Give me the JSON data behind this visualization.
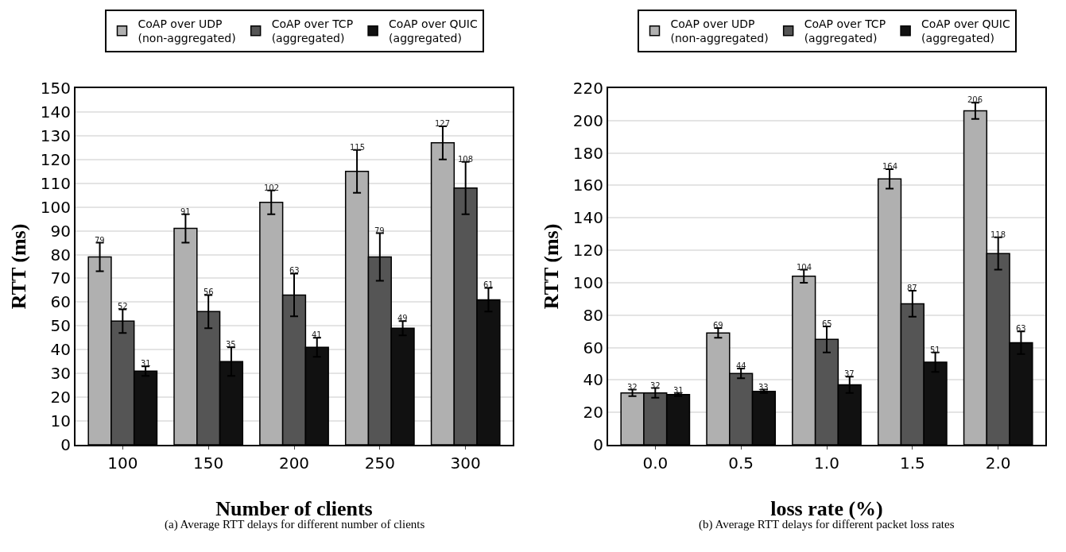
{
  "chart_data": [
    {
      "type": "bar",
      "xlabel": "Number of clients",
      "ylabel": "RTT (ms)",
      "categories": [
        "100",
        "150",
        "200",
        "250",
        "300"
      ],
      "ylim": [
        0,
        150
      ],
      "yticks": [
        0,
        10,
        20,
        30,
        40,
        50,
        60,
        70,
        80,
        90,
        100,
        110,
        120,
        130,
        140,
        150
      ],
      "grid": "y",
      "legend": "top",
      "data_labels": true,
      "annotations": [
        "(a) Average RTT delays for different number of clients"
      ],
      "series": [
        {
          "name": "CoAP over UDP\n(non-aggregated)",
          "color": "#b0b0b0",
          "values": [
            79,
            91,
            102,
            115,
            127
          ],
          "errors": [
            6,
            6,
            5,
            9,
            7
          ]
        },
        {
          "name": "CoAP over TCP\n(aggregated)",
          "color": "#555555",
          "values": [
            52,
            56,
            63,
            79,
            108
          ],
          "errors": [
            5,
            7,
            9,
            10,
            11
          ]
        },
        {
          "name": "CoAP over QUIC\n(aggregated)",
          "color": "#111111",
          "values": [
            31,
            35,
            41,
            49,
            61
          ],
          "errors": [
            2,
            6,
            4,
            3,
            5
          ]
        }
      ]
    },
    {
      "type": "bar",
      "xlabel": "loss rate (%)",
      "ylabel": "RTT (ms)",
      "categories": [
        "0.0",
        "0.5",
        "1.0",
        "1.5",
        "2.0"
      ],
      "ylim": [
        0,
        220
      ],
      "yticks": [
        0,
        20,
        40,
        60,
        80,
        100,
        120,
        140,
        160,
        180,
        200,
        220
      ],
      "grid": "y",
      "legend": "top",
      "data_labels": true,
      "annotations": [
        "(b) Average RTT delays for different packet loss rates"
      ],
      "series": [
        {
          "name": "CoAP over UDP\n(non-aggregated)",
          "color": "#b0b0b0",
          "values": [
            32,
            69,
            104,
            164,
            206
          ],
          "errors": [
            2,
            3,
            4,
            6,
            5
          ]
        },
        {
          "name": "CoAP over TCP\n(aggregated)",
          "color": "#555555",
          "values": [
            32,
            44,
            65,
            87,
            118
          ],
          "errors": [
            3,
            3,
            8,
            8,
            10
          ]
        },
        {
          "name": "CoAP over QUIC\n(aggregated)",
          "color": "#111111",
          "values": [
            31,
            33,
            37,
            51,
            63
          ],
          "errors": [
            1,
            1,
            5,
            6,
            7
          ]
        }
      ]
    }
  ]
}
